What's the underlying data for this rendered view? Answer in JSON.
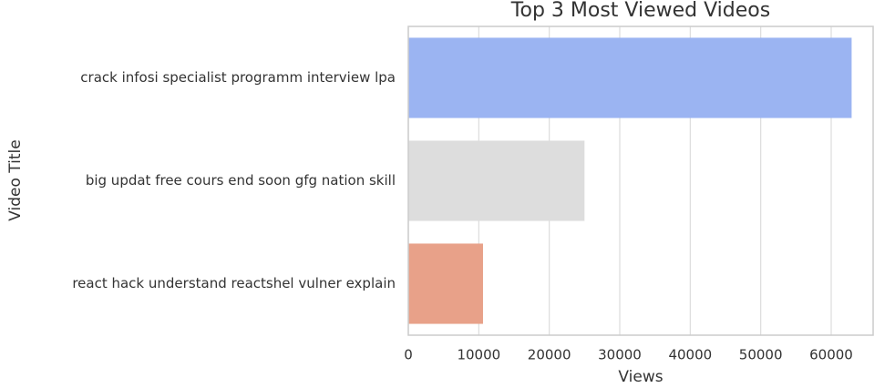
{
  "chart_data": {
    "type": "bar",
    "orientation": "horizontal",
    "title": "Top 3 Most Viewed Videos",
    "x_label": "Views",
    "y_label": "Video Title",
    "categories": [
      "crack infosi specialist programm interview lpa",
      "big updat free cours end soon gfg nation skill",
      "react hack understand reactshel vulner explain"
    ],
    "values": [
      62900,
      25000,
      10600
    ],
    "colors": [
      "#9bb4f2",
      "#dddddd",
      "#e8a189"
    ],
    "xlim": [
      0,
      65950
    ],
    "xticks": [
      0,
      10000,
      20000,
      30000,
      40000,
      50000,
      60000
    ],
    "grid": true
  }
}
